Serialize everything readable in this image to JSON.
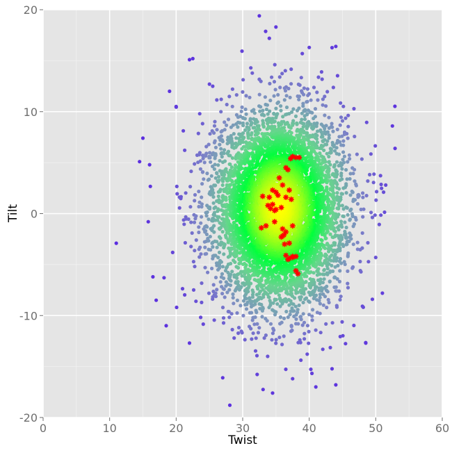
{
  "chart_data": {
    "type": "scatter",
    "title": "",
    "xlabel": "Twist",
    "ylabel": "Tilt",
    "xlim": [
      0,
      60
    ],
    "ylim": [
      -20,
      20
    ],
    "xticks": [
      0,
      10,
      20,
      30,
      40,
      50,
      60
    ],
    "yticks": [
      -20,
      -10,
      0,
      10,
      20
    ],
    "xtick_labels": [
      "0",
      "10",
      "20",
      "30",
      "40",
      "50",
      "60"
    ],
    "ytick_labels": [
      "-20",
      "-10",
      "0",
      "10",
      "20"
    ],
    "grid": true,
    "legend": "none",
    "colors": {
      "panel_background": "#e5e5e5",
      "grid_major": "#ffffff",
      "density_low": "#5a2be0",
      "density_mid_low": "#7f8cc4",
      "density_mid": "#66d68c",
      "density_high": "#00ff3c",
      "density_peak": "#ffff00",
      "highlight": "#ff0000"
    },
    "series": [
      {
        "marker": "circle",
        "description_type": "density-colored cloud",
        "center": [
          35.5,
          0.5
        ],
        "sd": [
          4.8,
          4.6
        ],
        "notable_outliers": [
          [
            11.0,
            -2.9
          ],
          [
            14.5,
            5.1
          ],
          [
            15.0,
            7.4
          ],
          [
            16.0,
            4.8
          ],
          [
            15.8,
            -0.8
          ],
          [
            22.0,
            15.1
          ],
          [
            22.5,
            15.2
          ],
          [
            25.0,
            12.7
          ],
          [
            25.5,
            12.5
          ],
          [
            19.0,
            12.0
          ],
          [
            20.0,
            10.5
          ],
          [
            32.5,
            19.4
          ],
          [
            34.0,
            17.2
          ],
          [
            35.0,
            18.3
          ],
          [
            40.0,
            16.3
          ],
          [
            44.0,
            16.4
          ],
          [
            52.5,
            8.6
          ],
          [
            52.9,
            6.4
          ],
          [
            51.5,
            2.8
          ],
          [
            50.0,
            -4.3
          ],
          [
            49.5,
            -8.4
          ],
          [
            51.0,
            -7.8
          ],
          [
            48.5,
            -12.7
          ],
          [
            44.0,
            -16.8
          ],
          [
            41.0,
            -17.0
          ],
          [
            37.5,
            -16.2
          ],
          [
            34.5,
            -17.6
          ],
          [
            27.0,
            -16.1
          ],
          [
            22.0,
            -12.7
          ],
          [
            18.5,
            -11.0
          ],
          [
            17.0,
            -8.5
          ],
          [
            16.5,
            -6.2
          ]
        ]
      },
      {
        "marker": "asterisk",
        "color": "#ff0000",
        "x": [
          37.5,
          38.0,
          38.5,
          37.2,
          36.5,
          36.8,
          35.5,
          36.0,
          37.0,
          37.3,
          36.5,
          35.0,
          34.5,
          35.3,
          34.0,
          33.8,
          33.0,
          34.5,
          35.8,
          35.0,
          34.8,
          34.2,
          32.8,
          33.5,
          36.5,
          34.8,
          36.0,
          37.5,
          36.2,
          35.8,
          36.0,
          37.0,
          36.3,
          36.5,
          37.5,
          38.0,
          37.0,
          36.8,
          37.5,
          38.0,
          38.3
        ],
        "y": [
          5.6,
          5.5,
          5.5,
          5.4,
          4.5,
          4.3,
          3.5,
          2.8,
          2.3,
          1.4,
          1.6,
          2.1,
          2.3,
          1.8,
          1.6,
          0.8,
          1.7,
          0.9,
          0.6,
          0.4,
          0.3,
          0.5,
          -1.4,
          -1.2,
          -1.8,
          -0.8,
          -1.5,
          -1.2,
          -2.1,
          -2.3,
          -2.2,
          -2.9,
          -3.0,
          -4.1,
          -4.2,
          -4.2,
          -4.4,
          -4.5,
          -4.3,
          -5.6,
          -5.9
        ]
      }
    ]
  }
}
